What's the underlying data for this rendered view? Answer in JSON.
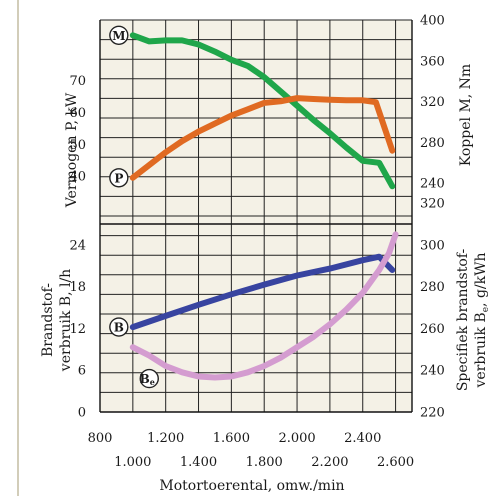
{
  "chart_data": {
    "type": "line",
    "background_color": "#f4f1e6",
    "grid": true,
    "x": {
      "label": "Motortoerental, omw./min",
      "range": [
        800,
        2700
      ],
      "ticks_row1": [
        "800",
        "1.200",
        "1.600",
        "2.000",
        "2.400"
      ],
      "ticks_row1_values": [
        800,
        1200,
        1600,
        2000,
        2400
      ],
      "ticks_row2": [
        "1.000",
        "1.400",
        "1.800",
        "2.200",
        "2.600"
      ],
      "ticks_row2_values": [
        1000,
        1400,
        1800,
        2200,
        2600
      ]
    },
    "upper_panel": {
      "left_axis": {
        "label": "Vermogen P, kW",
        "range": [
          25,
          89
        ],
        "ticks": [
          "40",
          "50",
          "60",
          "70"
        ],
        "tick_values": [
          40,
          50,
          60,
          70
        ]
      },
      "right_axis": {
        "label": "Koppel M, Nm",
        "range": [
          200,
          400
        ],
        "ticks": [
          "400",
          "360",
          "320",
          "280",
          "240"
        ],
        "tick_values": [
          400,
          360,
          320,
          280,
          240
        ]
      }
    },
    "lower_panel": {
      "left_axis": {
        "label_line1": "Brandstof-",
        "label_line2": "verbruik B, l/h",
        "range": [
          0,
          27
        ],
        "ticks": [
          "24",
          "18",
          "12",
          "6",
          "0"
        ],
        "tick_values": [
          24,
          18,
          12,
          6,
          0
        ]
      },
      "right_axis": {
        "label_line1": "Specifiek brandstof-",
        "label_line2": "verbruik B",
        "label_sub": "e",
        "label_line2_end": ", g/kWh",
        "range": [
          220,
          310
        ],
        "ticks": [
          "320",
          "300",
          "280",
          "260",
          "240",
          "220"
        ],
        "tick_values": [
          320,
          300,
          280,
          260,
          240,
          220
        ]
      }
    },
    "series": [
      {
        "marker": "M",
        "panel": "upper",
        "axis": "right",
        "color": "#1fa64a",
        "points": [
          [
            1000,
            385
          ],
          [
            1100,
            379
          ],
          [
            1200,
            380
          ],
          [
            1300,
            380
          ],
          [
            1400,
            376
          ],
          [
            1500,
            369
          ],
          [
            1600,
            361
          ],
          [
            1700,
            355
          ],
          [
            1800,
            344
          ],
          [
            1900,
            330
          ],
          [
            2000,
            316
          ],
          [
            2100,
            302
          ],
          [
            2200,
            289
          ],
          [
            2300,
            275
          ],
          [
            2400,
            262
          ],
          [
            2500,
            260
          ],
          [
            2580,
            237
          ]
        ]
      },
      {
        "marker": "P",
        "panel": "upper",
        "axis": "left",
        "color": "#e06a22",
        "points": [
          [
            1000,
            39.5
          ],
          [
            1100,
            43.5
          ],
          [
            1200,
            47.5
          ],
          [
            1300,
            51
          ],
          [
            1400,
            54
          ],
          [
            1500,
            56.5
          ],
          [
            1600,
            59
          ],
          [
            1700,
            61
          ],
          [
            1800,
            63
          ],
          [
            1900,
            63.5
          ],
          [
            2000,
            64.5
          ],
          [
            2100,
            64.2
          ],
          [
            2200,
            64
          ],
          [
            2300,
            63.8
          ],
          [
            2400,
            63.8
          ],
          [
            2480,
            63.2
          ],
          [
            2580,
            48
          ]
        ]
      },
      {
        "marker": "B",
        "panel": "lower",
        "axis": "left",
        "color": "#3844a0",
        "points": [
          [
            1000,
            12.2
          ],
          [
            1200,
            13.8
          ],
          [
            1400,
            15.4
          ],
          [
            1600,
            16.9
          ],
          [
            1800,
            18.3
          ],
          [
            2000,
            19.6
          ],
          [
            2200,
            20.6
          ],
          [
            2400,
            21.8
          ],
          [
            2500,
            22.3
          ],
          [
            2580,
            20.4
          ]
        ]
      },
      {
        "marker": "B",
        "marker_sub": "e",
        "panel": "lower",
        "axis": "right",
        "color": "#d49cd0",
        "points": [
          [
            1000,
            251
          ],
          [
            1100,
            247
          ],
          [
            1200,
            242
          ],
          [
            1300,
            239
          ],
          [
            1400,
            237
          ],
          [
            1500,
            236.5
          ],
          [
            1600,
            237
          ],
          [
            1700,
            239
          ],
          [
            1800,
            242
          ],
          [
            1900,
            246
          ],
          [
            2000,
            251
          ],
          [
            2100,
            256
          ],
          [
            2200,
            262
          ],
          [
            2300,
            269
          ],
          [
            2400,
            277
          ],
          [
            2500,
            288
          ],
          [
            2560,
            296
          ],
          [
            2600,
            305
          ]
        ]
      }
    ]
  }
}
